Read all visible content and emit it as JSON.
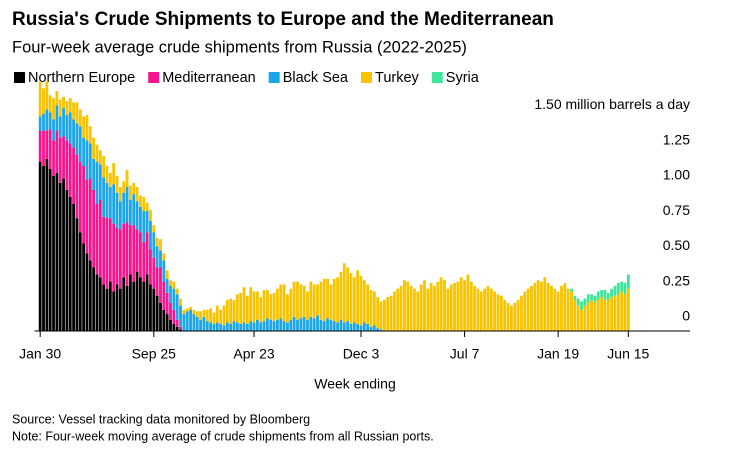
{
  "chart_data": {
    "type": "stacked_bar",
    "title": "Russia's Crude Shipments to Europe and the Mediterranean",
    "subtitle": "Four-week average crude shipments from Russia (2022-2025)",
    "x_label": "Week ending",
    "source": "Source: Vessel tracking data monitored by Bloomberg",
    "note": "Note: Four-week moving average of crude shipments from all Russian ports.",
    "ylim": [
      0,
      1.8
    ],
    "yticks": [
      0,
      0.25,
      {
        "value": 0.5,
        "label": "0.50"
      },
      0.75,
      {
        "value": 1.0,
        "label": "1.00"
      },
      1.25,
      {
        "value": 1.5,
        "label": "1.50 million barrels a day"
      }
    ],
    "y_axis_side": "right",
    "grid": false,
    "legend": "top-left",
    "categories": [
      "Jan 30",
      null,
      null,
      null,
      null,
      null,
      null,
      null,
      null,
      null,
      null,
      null,
      null,
      null,
      null,
      null,
      null,
      null,
      null,
      null,
      null,
      null,
      null,
      null,
      null,
      null,
      null,
      null,
      null,
      null,
      null,
      null,
      null,
      null,
      "Sep 25",
      null,
      null,
      null,
      null,
      null,
      null,
      null,
      null,
      null,
      null,
      null,
      null,
      null,
      null,
      null,
      null,
      null,
      null,
      null,
      null,
      null,
      null,
      null,
      null,
      null,
      null,
      null,
      null,
      null,
      "Apr 23",
      null,
      null,
      null,
      null,
      null,
      null,
      null,
      null,
      null,
      null,
      null,
      null,
      null,
      null,
      null,
      null,
      null,
      null,
      null,
      null,
      null,
      null,
      null,
      null,
      null,
      null,
      null,
      null,
      null,
      null,
      null,
      "Dec 3",
      null,
      null,
      null,
      null,
      null,
      null,
      null,
      null,
      null,
      null,
      null,
      null,
      null,
      null,
      null,
      null,
      null,
      null,
      null,
      null,
      null,
      null,
      null,
      null,
      null,
      null,
      null,
      null,
      null,
      null,
      "Jul 7",
      null,
      null,
      null,
      null,
      null,
      null,
      null,
      null,
      null,
      null,
      null,
      null,
      null,
      null,
      null,
      null,
      null,
      null,
      null,
      null,
      null,
      null,
      null,
      null,
      null,
      null,
      null,
      "Jan 19",
      null,
      null,
      null,
      null,
      null,
      null,
      null,
      null,
      null,
      null,
      null,
      null,
      null,
      null,
      null,
      null,
      null,
      null,
      null,
      null,
      "Jun 15"
    ],
    "series": [
      {
        "name": "Northern Europe",
        "color": "#000000",
        "values": [
          1.2,
          1.17,
          1.22,
          1.15,
          1.1,
          1.12,
          1.05,
          1.08,
          1.0,
          0.95,
          0.9,
          0.8,
          0.7,
          0.62,
          0.55,
          0.5,
          0.45,
          0.4,
          0.38,
          0.33,
          0.3,
          0.35,
          0.28,
          0.33,
          0.3,
          0.38,
          0.32,
          0.4,
          0.35,
          0.42,
          0.38,
          0.35,
          0.4,
          0.33,
          0.3,
          0.25,
          0.2,
          0.15,
          0.12,
          0.08,
          0.05,
          0.03,
          0.01,
          0,
          0,
          0,
          0,
          0,
          0,
          0,
          0,
          0,
          0,
          0,
          0,
          0,
          0,
          0,
          0,
          0,
          0,
          0,
          0,
          0,
          0,
          0,
          0,
          0,
          0,
          0,
          0,
          0,
          0,
          0,
          0,
          0,
          0,
          0,
          0,
          0,
          0,
          0,
          0,
          0,
          0,
          0,
          0,
          0,
          0,
          0,
          0,
          0,
          0,
          0,
          0,
          0,
          0,
          0,
          0,
          0,
          0,
          0,
          0,
          0,
          0,
          0,
          0,
          0,
          0,
          0,
          0,
          0,
          0,
          0,
          0,
          0,
          0,
          0,
          0,
          0,
          0,
          0,
          0,
          0,
          0,
          0,
          0,
          0,
          0,
          0,
          0,
          0,
          0,
          0,
          0,
          0,
          0,
          0,
          0,
          0,
          0,
          0,
          0,
          0,
          0,
          0,
          0,
          0,
          0,
          0,
          0,
          0,
          0,
          0,
          0,
          0,
          0,
          0,
          0,
          0,
          0,
          0,
          0,
          0,
          0,
          0,
          0,
          0,
          0,
          0,
          0,
          0,
          0,
          0,
          0,
          0,
          0
        ]
      },
      {
        "name": "Mediterranean",
        "color": "#f7148e",
        "values": [
          0.22,
          0.25,
          0.2,
          0.28,
          0.25,
          0.3,
          0.32,
          0.3,
          0.35,
          0.38,
          0.4,
          0.45,
          0.5,
          0.55,
          0.52,
          0.58,
          0.55,
          0.5,
          0.55,
          0.48,
          0.5,
          0.45,
          0.48,
          0.4,
          0.42,
          0.38,
          0.45,
          0.35,
          0.4,
          0.3,
          0.32,
          0.28,
          0.3,
          0.25,
          0.22,
          0.2,
          0.25,
          0.2,
          0.15,
          0.12,
          0.1,
          0.05,
          0.02,
          0,
          0,
          0,
          0,
          0,
          0,
          0,
          0,
          0,
          0,
          0,
          0,
          0,
          0,
          0,
          0,
          0,
          0,
          0,
          0,
          0,
          0,
          0,
          0,
          0,
          0,
          0,
          0,
          0,
          0,
          0,
          0,
          0,
          0,
          0,
          0,
          0,
          0,
          0,
          0,
          0,
          0,
          0,
          0,
          0,
          0,
          0,
          0,
          0,
          0,
          0,
          0,
          0,
          0,
          0,
          0,
          0,
          0,
          0,
          0,
          0,
          0,
          0,
          0,
          0,
          0,
          0,
          0,
          0,
          0,
          0,
          0,
          0,
          0,
          0,
          0,
          0,
          0,
          0,
          0,
          0,
          0,
          0,
          0,
          0,
          0,
          0,
          0,
          0,
          0,
          0,
          0,
          0,
          0,
          0,
          0,
          0,
          0,
          0,
          0,
          0,
          0,
          0,
          0,
          0,
          0,
          0,
          0,
          0,
          0,
          0,
          0,
          0,
          0,
          0,
          0,
          0,
          0,
          0,
          0,
          0,
          0,
          0,
          0,
          0,
          0,
          0,
          0,
          0,
          0,
          0,
          0,
          0,
          0
        ]
      },
      {
        "name": "Black Sea",
        "color": "#1ba5ea",
        "values": [
          0.1,
          0.12,
          0.15,
          0.12,
          0.15,
          0.18,
          0.15,
          0.2,
          0.18,
          0.22,
          0.2,
          0.22,
          0.25,
          0.2,
          0.28,
          0.25,
          0.22,
          0.3,
          0.25,
          0.28,
          0.25,
          0.22,
          0.28,
          0.25,
          0.2,
          0.22,
          0.25,
          0.18,
          0.22,
          0.2,
          0.18,
          0.22,
          0.15,
          0.2,
          0.18,
          0.15,
          0.12,
          0.15,
          0.1,
          0.12,
          0.15,
          0.18,
          0.15,
          0.12,
          0.14,
          0.15,
          0.12,
          0.1,
          0.08,
          0.1,
          0.07,
          0.06,
          0.05,
          0.06,
          0.05,
          0.04,
          0.06,
          0.05,
          0.07,
          0.06,
          0.05,
          0.06,
          0.05,
          0.07,
          0.06,
          0.08,
          0.06,
          0.07,
          0.09,
          0.08,
          0.07,
          0.08,
          0.09,
          0.07,
          0.06,
          0.08,
          0.1,
          0.08,
          0.09,
          0.1,
          0.08,
          0.1,
          0.09,
          0.11,
          0.08,
          0.07,
          0.09,
          0.08,
          0.07,
          0.06,
          0.08,
          0.06,
          0.07,
          0.05,
          0.06,
          0.05,
          0.04,
          0.06,
          0.05,
          0.03,
          0.04,
          0.02,
          0.01,
          0,
          0,
          0,
          0,
          0,
          0,
          0,
          0,
          0,
          0,
          0,
          0,
          0,
          0,
          0,
          0,
          0,
          0,
          0,
          0,
          0,
          0,
          0,
          0,
          0,
          0,
          0,
          0,
          0,
          0,
          0,
          0,
          0,
          0,
          0,
          0,
          0,
          0,
          0,
          0,
          0,
          0,
          0,
          0,
          0,
          0,
          0,
          0,
          0,
          0,
          0,
          0,
          0,
          0,
          0,
          0,
          0,
          0,
          0,
          0,
          0,
          0,
          0,
          0,
          0,
          0,
          0,
          0,
          0,
          0,
          0,
          0,
          0,
          0
        ]
      },
      {
        "name": "Turkey",
        "color": "#f9c300",
        "values": [
          0.25,
          0.18,
          0.2,
          0.12,
          0.15,
          0.1,
          0.12,
          0.08,
          0.1,
          0.1,
          0.12,
          0.15,
          0.12,
          0.15,
          0.18,
          0.12,
          0.15,
          0.12,
          0.1,
          0.15,
          0.12,
          0.1,
          0.15,
          0.12,
          0.1,
          0.08,
          0.12,
          0.1,
          0.08,
          0.1,
          0.08,
          0.1,
          0.06,
          0.08,
          0.05,
          0.06,
          0.08,
          0.05,
          0.06,
          0.04,
          0.05,
          0.04,
          0.05,
          0.03,
          0.02,
          0.02,
          0.03,
          0.04,
          0.06,
          0.05,
          0.08,
          0.1,
          0.08,
          0.12,
          0.1,
          0.14,
          0.16,
          0.18,
          0.15,
          0.2,
          0.22,
          0.25,
          0.2,
          0.24,
          0.22,
          0.2,
          0.18,
          0.22,
          0.2,
          0.18,
          0.2,
          0.22,
          0.24,
          0.26,
          0.2,
          0.22,
          0.25,
          0.27,
          0.24,
          0.22,
          0.2,
          0.25,
          0.24,
          0.22,
          0.27,
          0.3,
          0.28,
          0.25,
          0.3,
          0.32,
          0.34,
          0.42,
          0.38,
          0.36,
          0.32,
          0.38,
          0.35,
          0.3,
          0.28,
          0.26,
          0.24,
          0.22,
          0.2,
          0.22,
          0.24,
          0.25,
          0.28,
          0.3,
          0.32,
          0.36,
          0.35,
          0.32,
          0.3,
          0.28,
          0.33,
          0.36,
          0.3,
          0.34,
          0.32,
          0.35,
          0.38,
          0.36,
          0.3,
          0.33,
          0.34,
          0.35,
          0.38,
          0.36,
          0.4,
          0.35,
          0.32,
          0.3,
          0.28,
          0.3,
          0.32,
          0.3,
          0.28,
          0.26,
          0.25,
          0.22,
          0.2,
          0.18,
          0.2,
          0.22,
          0.25,
          0.28,
          0.3,
          0.32,
          0.34,
          0.36,
          0.35,
          0.38,
          0.34,
          0.32,
          0.3,
          0.28,
          0.32,
          0.34,
          0.3,
          0.28,
          0.22,
          0.18,
          0.15,
          0.18,
          0.2,
          0.22,
          0.2,
          0.22,
          0.24,
          0.22,
          0.22,
          0.24,
          0.25,
          0.26,
          0.28,
          0.26,
          0.3
        ]
      },
      {
        "name": "Syria",
        "color": "#3ee69c",
        "values": [
          0,
          0,
          0,
          0,
          0,
          0,
          0,
          0,
          0,
          0,
          0,
          0,
          0,
          0,
          0,
          0,
          0,
          0,
          0,
          0,
          0,
          0,
          0,
          0,
          0,
          0,
          0,
          0,
          0,
          0,
          0,
          0,
          0,
          0,
          0,
          0,
          0,
          0,
          0,
          0,
          0,
          0,
          0,
          0,
          0,
          0,
          0,
          0,
          0,
          0,
          0,
          0,
          0,
          0,
          0,
          0,
          0,
          0,
          0,
          0,
          0,
          0,
          0,
          0,
          0,
          0,
          0,
          0,
          0,
          0,
          0,
          0,
          0,
          0,
          0,
          0,
          0,
          0,
          0,
          0,
          0,
          0,
          0,
          0,
          0,
          0,
          0,
          0,
          0,
          0,
          0,
          0,
          0,
          0,
          0,
          0,
          0,
          0,
          0,
          0,
          0,
          0,
          0,
          0,
          0,
          0,
          0,
          0,
          0,
          0,
          0,
          0,
          0,
          0,
          0,
          0,
          0,
          0,
          0,
          0,
          0,
          0,
          0,
          0,
          0,
          0,
          0,
          0,
          0,
          0,
          0,
          0,
          0,
          0,
          0,
          0,
          0,
          0,
          0,
          0,
          0,
          0,
          0,
          0,
          0,
          0,
          0,
          0,
          0,
          0,
          0,
          0,
          0,
          0,
          0,
          0,
          0,
          0,
          0,
          0.02,
          0.03,
          0.05,
          0.06,
          0.05,
          0.06,
          0.04,
          0.05,
          0.06,
          0.05,
          0.07,
          0.05,
          0.06,
          0.07,
          0.08,
          0.07,
          0.08,
          0.1
        ]
      }
    ]
  }
}
